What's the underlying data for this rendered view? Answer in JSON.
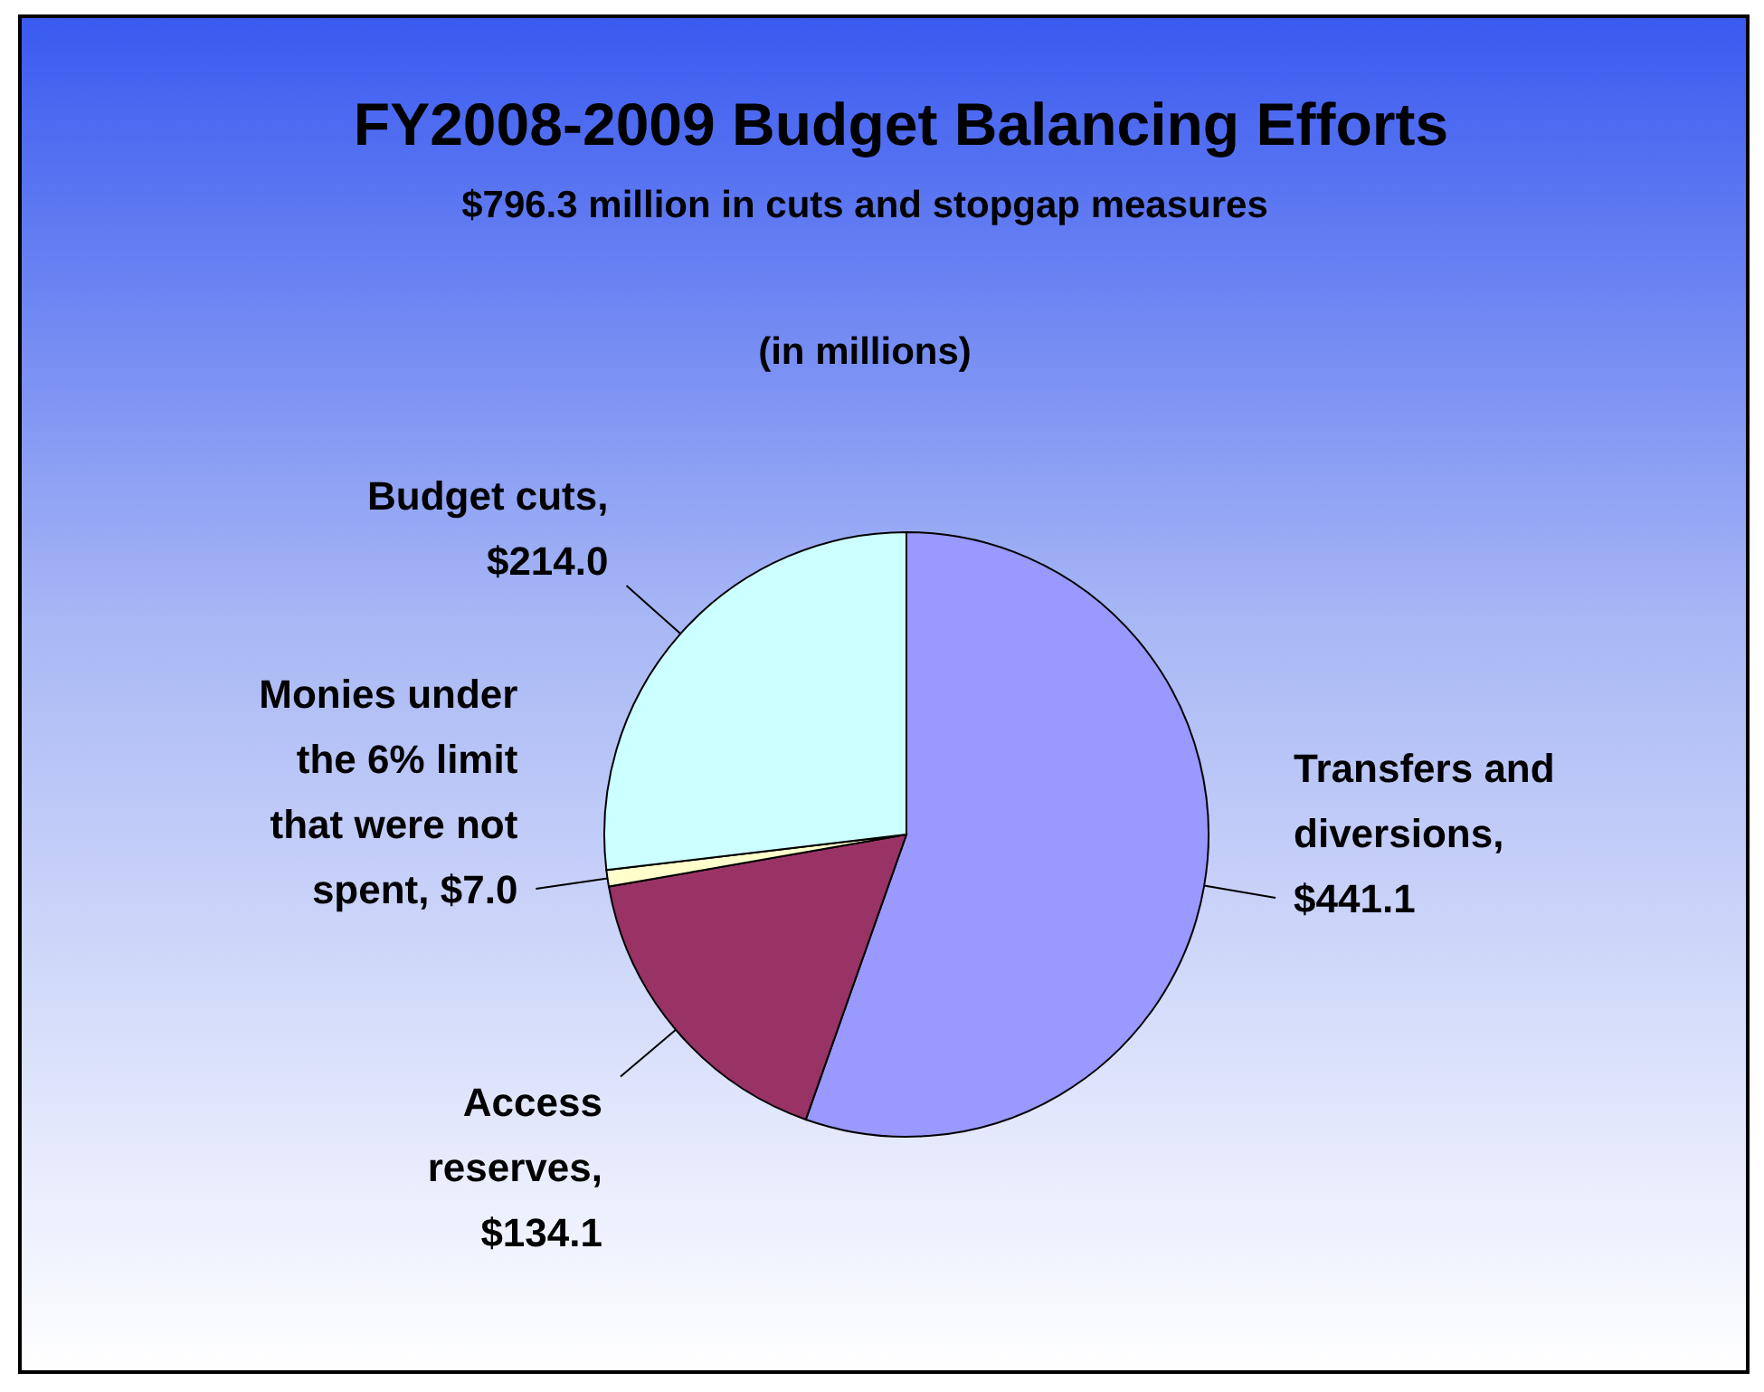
{
  "chart_data": {
    "type": "pie",
    "title": "FY2008-2009 Budget Balancing Efforts",
    "subtitle": "$796.3 million in cuts and stopgap measures",
    "annotations": [
      "(in millions)"
    ],
    "categories": [
      "Transfers and diversions",
      "Access reserves",
      "Monies under the 6% limit that were not spent",
      "Budget cuts"
    ],
    "values": [
      441.1,
      134.1,
      7.0,
      214.0
    ],
    "value_labels": [
      ", $441.1",
      ", $134.1",
      ", $7.0",
      ", $214.0"
    ],
    "colors": [
      "#9999ff",
      "#993366",
      "#ffffcc",
      "#ccffff"
    ]
  }
}
